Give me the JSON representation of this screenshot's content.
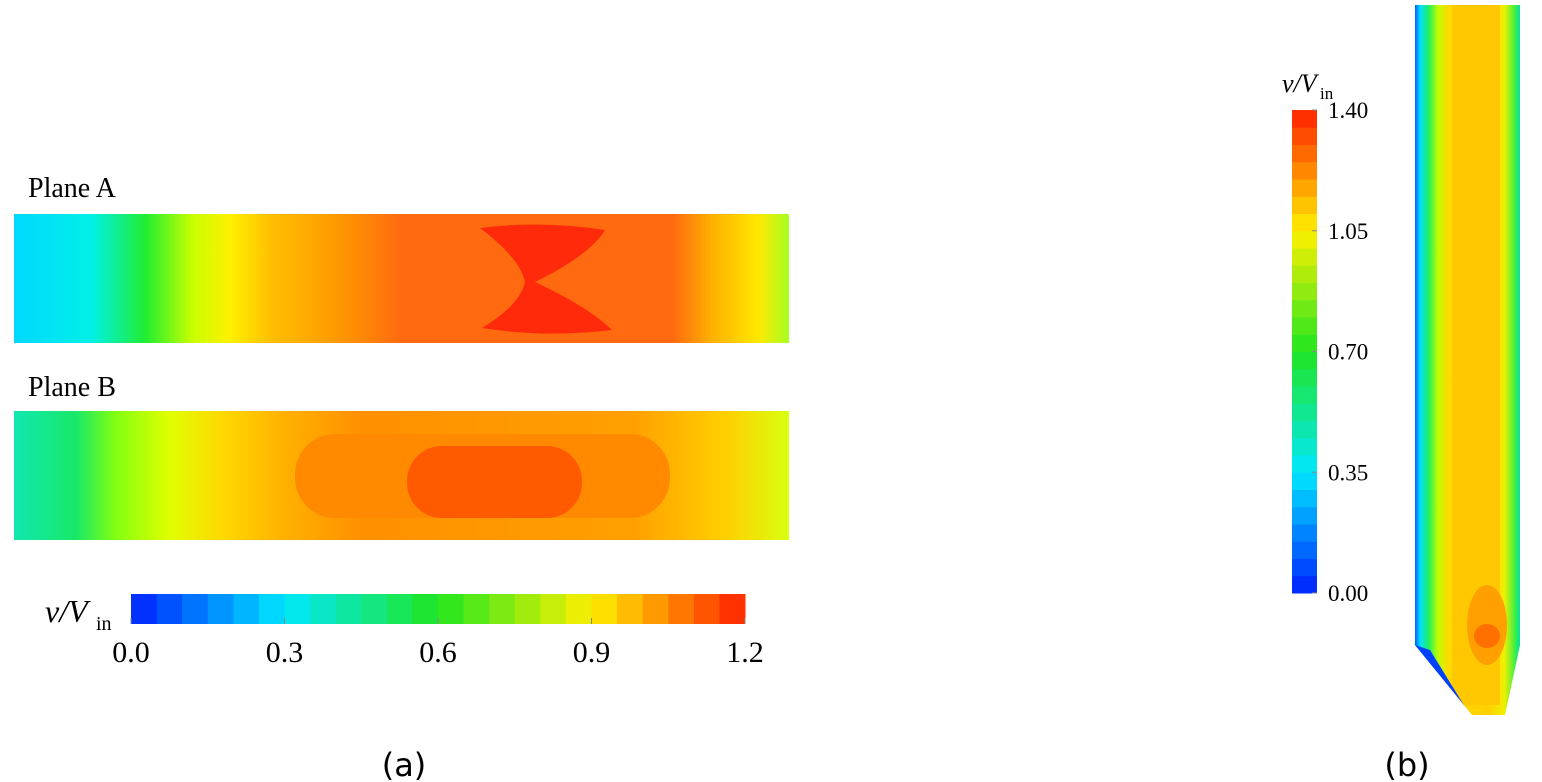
{
  "panel_a": {
    "planes": [
      {
        "label": "Plane A"
      },
      {
        "label": "Plane B"
      }
    ],
    "colorbar": {
      "label_var": "v/V",
      "label_sub": "in",
      "range": [
        0,
        1.2
      ],
      "ticks": [
        {
          "value": 0,
          "label": "0.0"
        },
        {
          "value": 0.3,
          "label": "0.3"
        },
        {
          "value": 0.6,
          "label": "0.6"
        },
        {
          "value": 0.9,
          "label": "0.9"
        },
        {
          "value": 1.2,
          "label": "1.2"
        }
      ]
    },
    "caption": "(a)"
  },
  "panel_b": {
    "colorbar": {
      "label_var": "v/V",
      "label_sub": "in",
      "range": [
        0,
        1.4
      ],
      "ticks": [
        {
          "value": 0,
          "label": "0.00"
        },
        {
          "value": 0.35,
          "label": "0.35"
        },
        {
          "value": 0.7,
          "label": "0.70"
        },
        {
          "value": 1.05,
          "label": "1.05"
        },
        {
          "value": 1.4,
          "label": "1.40"
        }
      ]
    },
    "caption": "(b)"
  }
}
